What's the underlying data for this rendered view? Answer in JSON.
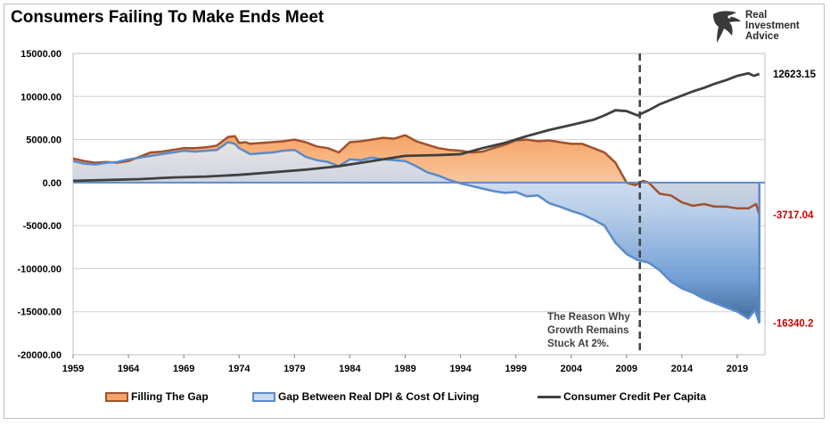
{
  "chart_data": {
    "type": "area",
    "title": "Consumers Failing To Make Ends Meet",
    "xlabel": "",
    "ylabel": "",
    "xlim": [
      1959,
      2021.5
    ],
    "ylim": [
      -20000,
      15000
    ],
    "x_tick_labels": [
      "1959",
      "1964",
      "1969",
      "1974",
      "1979",
      "1984",
      "1989",
      "1994",
      "1999",
      "2004",
      "2009",
      "2014",
      "2019"
    ],
    "y_tick_labels": [
      "15000.00",
      "10000.00",
      "5000.00",
      "0.00",
      "-5000.00",
      "-10000.00",
      "-15000.00",
      "-20000.00"
    ],
    "grid": true,
    "legend_position": "bottom",
    "series": [
      {
        "name": "Filling The Gap",
        "kind": "area",
        "color": "#f4a46a",
        "line_color": "#a0522d",
        "x": [
          1959,
          1960,
          1961,
          1962,
          1963,
          1964,
          1965,
          1966,
          1967,
          1968,
          1969,
          1970,
          1971,
          1972,
          1973,
          1973.6,
          1974,
          1974.6,
          1975,
          1976,
          1977,
          1978,
          1979,
          1980,
          1981,
          1982,
          1983,
          1984,
          1985,
          1986,
          1987,
          1988,
          1989,
          1990,
          1991,
          1992,
          1993,
          1994,
          1995,
          1996,
          1997,
          1998,
          1999,
          2000,
          2001,
          2002,
          2003,
          2004,
          2005,
          2006,
          2007,
          2008,
          2009,
          2009.8,
          2010.5,
          2011,
          2012,
          2013,
          2014,
          2015,
          2016,
          2017,
          2018,
          2019,
          2020,
          2020.7,
          2021
        ],
        "values": [
          2800,
          2500,
          2300,
          2400,
          2300,
          2500,
          3000,
          3500,
          3600,
          3800,
          4000,
          4000,
          4100,
          4300,
          5300,
          5400,
          4600,
          4700,
          4500,
          4600,
          4700,
          4800,
          5000,
          4700,
          4200,
          4000,
          3500,
          4700,
          4800,
          5000,
          5200,
          5100,
          5500,
          4800,
          4400,
          4000,
          3800,
          3700,
          3500,
          3600,
          4000,
          4400,
          4900,
          5000,
          4800,
          4900,
          4700,
          4500,
          4500,
          4000,
          3500,
          2300,
          0,
          -300,
          200,
          0,
          -1300,
          -1500,
          -2300,
          -2700,
          -2500,
          -2800,
          -2800,
          -3000,
          -3000,
          -2500,
          -3717.04
        ]
      },
      {
        "name": "Gap Between Real DPI & Cost Of Living",
        "kind": "area",
        "color": "#7aa4d4",
        "line_color": "#5b8bc9",
        "x": [
          1959,
          1960,
          1961,
          1962,
          1963,
          1964,
          1965,
          1966,
          1967,
          1968,
          1969,
          1970,
          1971,
          1972,
          1973,
          1973.6,
          1974,
          1975,
          1976,
          1977,
          1978,
          1979,
          1980,
          1981,
          1982,
          1983,
          1984,
          1985,
          1986,
          1987,
          1988,
          1989,
          1990,
          1991,
          1992,
          1993,
          1994,
          1995,
          1996,
          1997,
          1998,
          1999,
          2000,
          2001,
          2002,
          2003,
          2004,
          2005,
          2006,
          2007,
          2008,
          2009,
          2010,
          2011,
          2012,
          2013,
          2014,
          2015,
          2016,
          2017,
          2018,
          2019,
          2020,
          2020.6,
          2021
        ],
        "values": [
          2500,
          2200,
          2100,
          2300,
          2400,
          2700,
          2900,
          3100,
          3300,
          3500,
          3700,
          3600,
          3700,
          3800,
          4700,
          4500,
          4000,
          3300,
          3400,
          3500,
          3700,
          3800,
          3000,
          2600,
          2400,
          1900,
          2700,
          2600,
          2900,
          2700,
          2600,
          2500,
          1900,
          1200,
          800,
          300,
          -100,
          -400,
          -700,
          -1000,
          -1200,
          -1100,
          -1600,
          -1500,
          -2400,
          -2800,
          -3300,
          -3700,
          -4300,
          -5000,
          -7000,
          -8300,
          -9000,
          -9300,
          -10200,
          -11500,
          -12300,
          -12800,
          -13500,
          -14000,
          -14500,
          -15000,
          -15800,
          -14800,
          -16340.2
        ]
      },
      {
        "name": "Consumer Credit Per Capita",
        "kind": "line",
        "color": "#404040",
        "x": [
          1959,
          1962,
          1965,
          1968,
          1971,
          1974,
          1977,
          1980,
          1983,
          1986,
          1989,
          1992,
          1994,
          1996,
          1998,
          2000,
          2002,
          2004,
          2006,
          2007,
          2008,
          2009,
          2010,
          2011,
          2012,
          2013,
          2014,
          2015,
          2016,
          2017,
          2018,
          2019,
          2020,
          2020.5,
          2021
        ],
        "values": [
          200,
          300,
          400,
          600,
          700,
          900,
          1200,
          1500,
          1900,
          2500,
          3100,
          3200,
          3300,
          4000,
          4600,
          5400,
          6100,
          6700,
          7300,
          7800,
          8400,
          8300,
          7800,
          8400,
          9100,
          9600,
          10100,
          10600,
          11000,
          11500,
          11900,
          12400,
          12700,
          12400,
          12623.15
        ]
      }
    ],
    "end_labels": [
      {
        "text": "12623.15",
        "color": "#000000",
        "value": 12623.15
      },
      {
        "text": "-3717.04",
        "color": "#cc0000",
        "value": -3717.04
      },
      {
        "text": "-16340.2",
        "color": "#cc0000",
        "value": -16340.2
      }
    ],
    "annotation": {
      "lines": [
        "The Reason Why",
        "Growth Remains",
        "Stuck At 2%."
      ],
      "marker_x": 2010.2
    }
  },
  "logo": {
    "line1": "Real",
    "line2": "Investment",
    "line3": "Advice"
  }
}
